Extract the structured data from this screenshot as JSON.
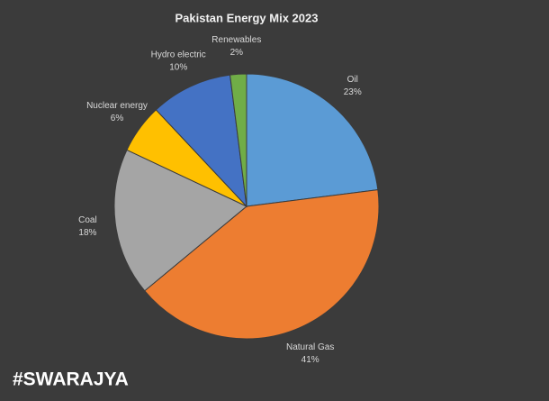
{
  "chart_data": {
    "type": "pie",
    "title": "Pakistan Energy Mix 2023",
    "categories": [
      "Oil",
      "Natural Gas",
      "Coal",
      "Nuclear energy",
      "Hydro electric",
      "Renewables"
    ],
    "values": [
      23,
      41,
      18,
      6,
      10,
      2
    ],
    "value_labels": [
      "23%",
      "41%",
      "18%",
      "6%",
      "10%",
      "2%"
    ],
    "colors": [
      "#5b9bd5",
      "#ed7d31",
      "#a5a5a5",
      "#ffc000",
      "#4472c4",
      "#70ad47"
    ]
  },
  "watermark": "#SWARAJYA"
}
